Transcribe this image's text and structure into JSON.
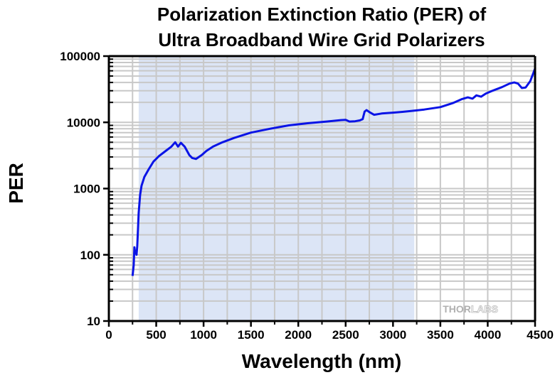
{
  "chart_data": {
    "type": "line",
    "title_lines": [
      "Polarization Extinction Ratio (PER) of",
      "Ultra Broadband Wire Grid Polarizers"
    ],
    "xlabel": "Wavelength (nm)",
    "ylabel": "PER",
    "xlim": [
      0,
      4500
    ],
    "ylim": [
      10,
      100000
    ],
    "yscale": "log",
    "grid": true,
    "x_ticks": [
      "0",
      "500",
      "1000",
      "1500",
      "2000",
      "2500",
      "3000",
      "3500",
      "4000",
      "4500"
    ],
    "x_tick_values": [
      0,
      500,
      1000,
      1500,
      2000,
      2500,
      3000,
      3500,
      4000,
      4500
    ],
    "y_ticks": [
      "10",
      "100",
      "1000",
      "10000",
      "100000"
    ],
    "y_tick_values": [
      10,
      100,
      1000,
      10000,
      100000
    ],
    "shaded_range": [
      315,
      3225
    ],
    "colors": {
      "line": "#0a14e6",
      "shade": "#dce5f6",
      "grid": "#c8c8c8",
      "logo": "#bdbdbd"
    },
    "watermark": {
      "part1": "THOR",
      "part2": "LABS"
    },
    "series": [
      {
        "name": "PER",
        "x": [
          250,
          262,
          270,
          278,
          283,
          292,
          300,
          315,
          330,
          345,
          375,
          420,
          470,
          530,
          600,
          660,
          700,
          730,
          760,
          800,
          850,
          880,
          920,
          980,
          1030,
          1100,
          1200,
          1320,
          1500,
          1700,
          1900,
          2100,
          2300,
          2450,
          2500,
          2540,
          2600,
          2650,
          2680,
          2700,
          2720,
          2760,
          2800,
          2880,
          3000,
          3100,
          3200,
          3330,
          3500,
          3630,
          3730,
          3790,
          3840,
          3880,
          3930,
          3980,
          4050,
          4150,
          4230,
          4280,
          4320,
          4360,
          4400,
          4450,
          4500
        ],
        "y": [
          48,
          70,
          130,
          105,
          115,
          100,
          135,
          430,
          800,
          1100,
          1500,
          1950,
          2550,
          3100,
          3700,
          4300,
          5000,
          4300,
          4900,
          4300,
          3200,
          2900,
          2800,
          3200,
          3700,
          4300,
          5000,
          5800,
          7000,
          8000,
          9000,
          9700,
          10300,
          10800,
          10900,
          10300,
          10400,
          10700,
          11200,
          14500,
          15300,
          14000,
          13000,
          13600,
          14000,
          14400,
          14900,
          15600,
          17000,
          19500,
          22500,
          23800,
          22800,
          25500,
          24400,
          27200,
          30000,
          34000,
          38500,
          40000,
          38500,
          33000,
          33500,
          42000,
          65000
        ]
      }
    ]
  }
}
